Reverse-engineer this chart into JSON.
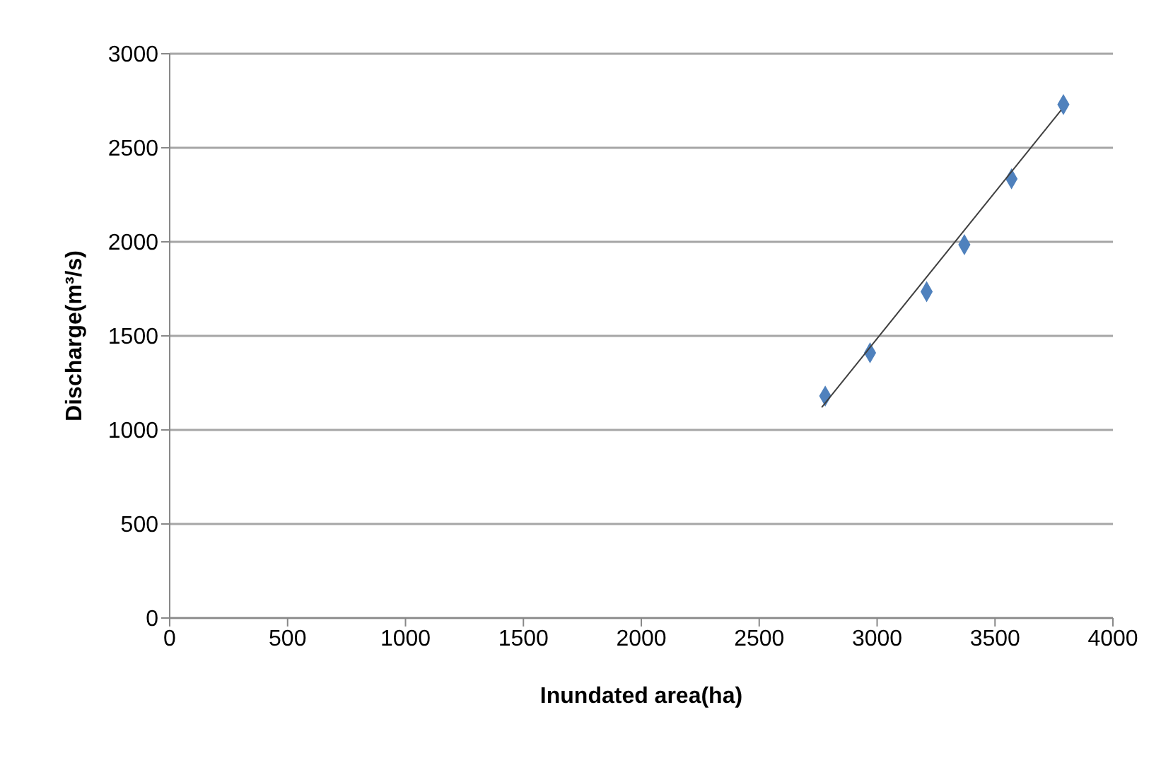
{
  "chart_data": {
    "type": "scatter",
    "xlabel": "Inundated area(ha)",
    "ylabel": "Discharge(m³/s)",
    "xlim": [
      0,
      4000
    ],
    "xticks": [
      0,
      500,
      1000,
      1500,
      2000,
      2500,
      3000,
      3500,
      4000
    ],
    "ylim": [
      0,
      3000
    ],
    "yticks": [
      0,
      500,
      1000,
      1500,
      2000,
      2500,
      3000
    ],
    "grid": "y",
    "marker": "diamond",
    "series": [
      {
        "color": "#4f81bd",
        "x": [
          2780,
          2970,
          3210,
          3370,
          3570,
          3790
        ],
        "values": [
          1180,
          1410,
          1735,
          1985,
          2335,
          2730
        ]
      },
      {
        "type": "line",
        "color": "#404040",
        "x": [
          2765,
          3780
        ],
        "values": [
          1120,
          2700
        ],
        "marker": "none"
      }
    ]
  }
}
